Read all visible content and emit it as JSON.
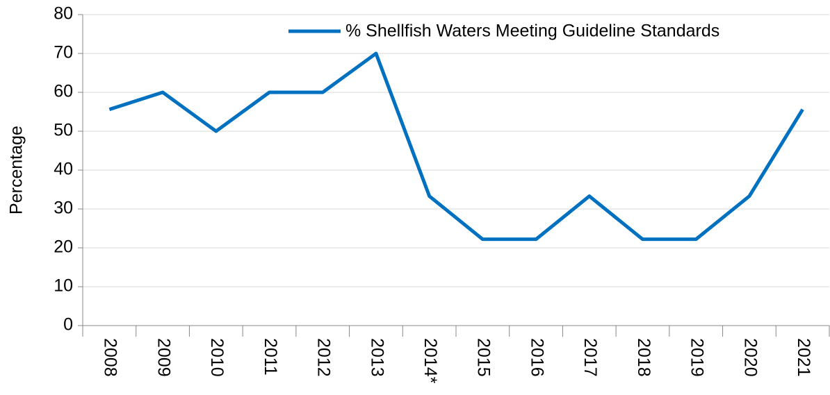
{
  "chart_data": {
    "type": "line",
    "y_label": "Percentage",
    "categories": [
      "2008",
      "2009",
      "2010",
      "2011",
      "2012",
      "2013",
      "2014*",
      "2015",
      "2016",
      "2017",
      "2018",
      "2019",
      "2020",
      "2021"
    ],
    "series": [
      {
        "name": "% Shellfish Waters Meeting Guideline Standards",
        "color": "#0070c0",
        "values": [
          55.6,
          60,
          50,
          60,
          60,
          70,
          33.3,
          22.2,
          22.2,
          33.3,
          22.2,
          22.2,
          33.3,
          55.6
        ]
      }
    ],
    "ylim": [
      0,
      80
    ],
    "yticks": [
      0,
      10,
      20,
      30,
      40,
      50,
      60,
      70,
      80
    ],
    "grid": true,
    "legend": "top-right"
  }
}
